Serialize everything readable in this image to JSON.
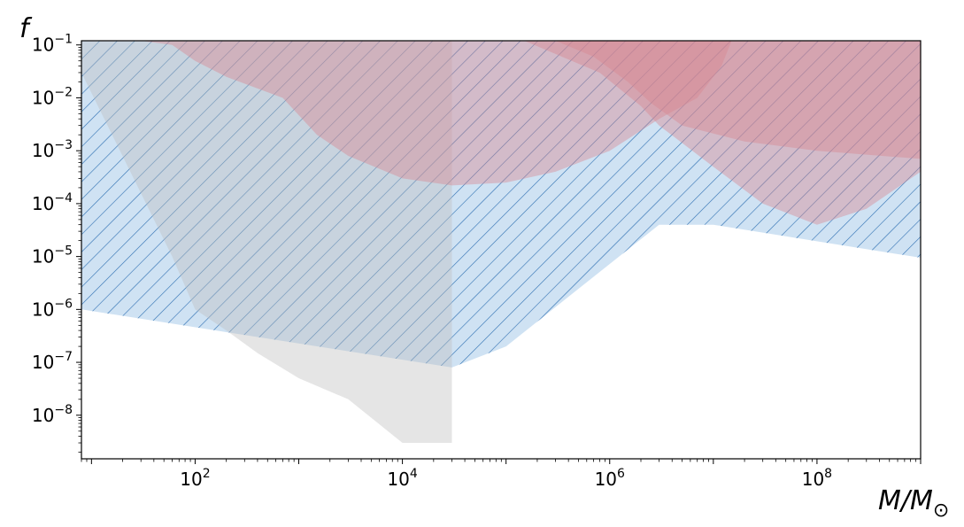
{
  "chart_data": {
    "type": "area",
    "xlabel": "M/M_⊙",
    "ylabel": "f",
    "xscale": "log",
    "yscale": "log",
    "xlim": [
      8,
      1000000000
    ],
    "ylim": [
      1.5e-09,
      0.12
    ],
    "grid": false,
    "x_ticks": [
      {
        "value": 100,
        "base": "10",
        "exp": "2"
      },
      {
        "value": 10000,
        "base": "10",
        "exp": "4"
      },
      {
        "value": 1000000,
        "base": "10",
        "exp": "6"
      },
      {
        "value": 100000000,
        "base": "10",
        "exp": "8"
      }
    ],
    "y_ticks": [
      {
        "value": 0.1,
        "base": "10",
        "exp": "−1"
      },
      {
        "value": 0.01,
        "base": "10",
        "exp": "−2"
      },
      {
        "value": 0.001,
        "base": "10",
        "exp": "−3"
      },
      {
        "value": 0.0001,
        "base": "10",
        "exp": "−4"
      },
      {
        "value": 1e-05,
        "base": "10",
        "exp": "−5"
      },
      {
        "value": 1e-06,
        "base": "10",
        "exp": "−6"
      },
      {
        "value": 1e-07,
        "base": "10",
        "exp": "−7"
      },
      {
        "value": 1e-08,
        "base": "10",
        "exp": "−8"
      }
    ],
    "regions": [
      {
        "style": "blue-hatched",
        "fill": "#cfe2f3",
        "hatch_color": "#2a6db0",
        "lower_boundary": [
          [
            8,
            1e-06
          ],
          [
            30000,
            8e-08
          ],
          [
            100000,
            2e-07
          ],
          [
            3000000,
            4e-05
          ],
          [
            10000000,
            4e-05
          ],
          [
            1000000000,
            9.5e-06
          ]
        ]
      },
      {
        "style": "gray",
        "fill": "#bfbfbf",
        "boundary": [
          [
            8,
            0.03
          ],
          [
            60,
            1e-05
          ],
          [
            100,
            1e-06
          ],
          [
            200,
            4e-07
          ],
          [
            400,
            1.5e-07
          ],
          [
            1000,
            5e-08
          ],
          [
            3000,
            2e-08
          ],
          [
            10000,
            3e-09
          ],
          [
            30000,
            3e-09
          ],
          [
            30000,
            0.12
          ],
          [
            8,
            0.12
          ]
        ]
      },
      {
        "style": "red",
        "fill": "#d9868f",
        "boundary": [
          [
            30,
            0.12
          ],
          [
            60,
            0.1
          ],
          [
            100,
            0.05
          ],
          [
            200,
            0.025
          ],
          [
            700,
            0.01
          ],
          [
            1500,
            0.002
          ],
          [
            3000,
            0.0008
          ],
          [
            10000,
            0.0003
          ],
          [
            30000,
            0.00022
          ],
          [
            100000,
            0.00025
          ],
          [
            300000,
            0.0004
          ],
          [
            1000000,
            0.001
          ],
          [
            3000000,
            0.004
          ],
          [
            7000000,
            0.01
          ],
          [
            12000000,
            0.04
          ],
          [
            15000000,
            0.12
          ]
        ]
      },
      {
        "style": "red",
        "fill": "#d9868f",
        "boundary": [
          [
            150000,
            0.12
          ],
          [
            800000,
            0.03
          ],
          [
            2000000,
            0.007
          ],
          [
            3000000,
            0.003
          ],
          [
            10000000,
            0.0005
          ],
          [
            30000000,
            0.0001
          ],
          [
            100000000,
            4e-05
          ],
          [
            300000000,
            8e-05
          ],
          [
            1000000000,
            0.0004
          ],
          [
            1000000000,
            0.12
          ]
        ]
      },
      {
        "style": "red",
        "fill": "#d9868f",
        "boundary": [
          [
            300000,
            0.12
          ],
          [
            700000,
            0.06
          ],
          [
            1500000,
            0.02
          ],
          [
            2500000,
            0.008
          ],
          [
            5000000,
            0.003
          ],
          [
            20000000,
            0.0015
          ],
          [
            100000000,
            0.001
          ],
          [
            1000000000,
            0.0007
          ],
          [
            1000000000,
            0.12
          ]
        ]
      }
    ]
  }
}
